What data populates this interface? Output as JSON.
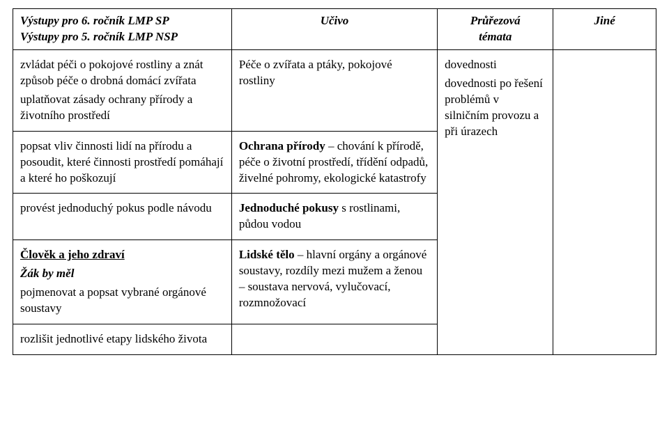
{
  "header": {
    "col1_line1": "Výstupy pro 6. ročník LMP SP",
    "col1_line2": "Výstupy pro 5. ročník LMP NSP",
    "col2": "Učivo",
    "col3_line1": "Průřezová",
    "col3_line2": "témata",
    "col4": "Jiné"
  },
  "rows": [
    {
      "col1": [
        {
          "text": "zvládat péči o pokojové rostliny a znát způsob péče o drobná domácí zvířata",
          "style": ""
        },
        {
          "text": "",
          "style": ""
        },
        {
          "text": "uplatňovat zásady ochrany přírody a životního prostředí",
          "style": ""
        }
      ],
      "col2": [
        {
          "text": "Péče o zvířata a ptáky, pokojové rostliny",
          "style": ""
        }
      ],
      "col3": [
        {
          "text": "dovednosti",
          "style": ""
        },
        {
          "text": "dovednosti po řešení problémů v silničním provozu a při úrazech",
          "style": ""
        }
      ],
      "col4": []
    },
    {
      "col1": [
        {
          "text": "popsat vliv činnosti lidí na přírodu a posoudit, které činnosti prostředí pomáhají a které ho poškozují",
          "style": ""
        }
      ],
      "col2": [
        {
          "lead": "Ochrana přírody",
          "lead_style": "b",
          "rest": " – chování k přírodě, péče o životní prostředí, třídění odpadů, živelné pohromy, ekologické katastrofy"
        }
      ],
      "col3": [],
      "col4": []
    },
    {
      "col1": [
        {
          "text": "provést jednoduchý pokus podle návodu",
          "style": ""
        }
      ],
      "col2": [
        {
          "lead": "Jednoduché pokusy",
          "lead_style": "b",
          "rest": " s rostlinami, půdou vodou"
        }
      ],
      "col3": [],
      "col4": []
    },
    {
      "col1": [
        {
          "text": "Člověk a jeho zdraví",
          "style": "b u"
        },
        {
          "text": "Žák by měl",
          "style": "bi"
        },
        {
          "text": "pojmenovat a popsat vybrané orgánové soustavy",
          "style": ""
        }
      ],
      "col2": [
        {
          "lead": "Lidské tělo",
          "lead_style": "b",
          "rest": " – hlavní orgány a orgánové soustavy, rozdíly mezi mužem a ženou – soustava nervová, vylučovací, rozmnožovací"
        }
      ],
      "col3": [],
      "col4": []
    },
    {
      "col1": [
        {
          "text": "rozlišit jednotlivé etapy lidského života",
          "style": ""
        }
      ],
      "col2": [],
      "col3": [],
      "col4": []
    }
  ],
  "layout": {
    "col_widths": [
      "34%",
      "32%",
      "18%",
      "16%"
    ],
    "font_family": "Times New Roman",
    "body_fontsize_pt": 13,
    "header_bold": true,
    "header_italic": true,
    "border_color": "#000000",
    "background_color": "#ffffff"
  }
}
